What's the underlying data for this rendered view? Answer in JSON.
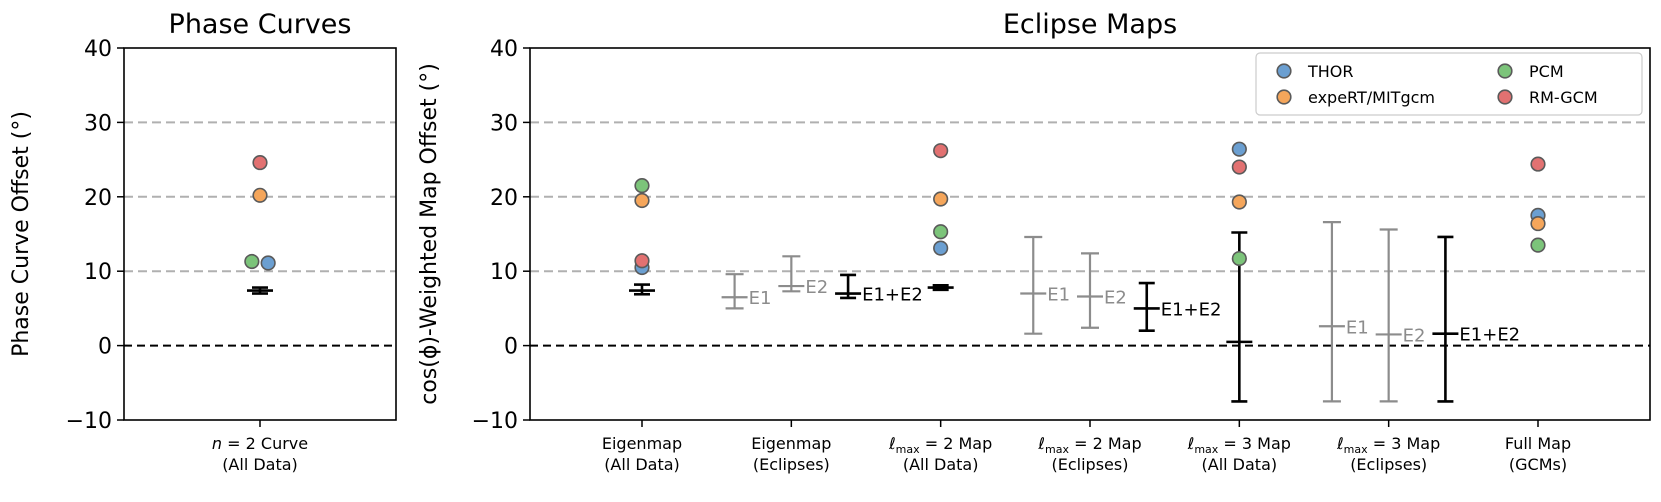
{
  "chart_data": [
    {
      "type": "scatter",
      "title": "Phase Curves",
      "ylabel": "Phase Curve Offset (°)",
      "ylim": [
        -10,
        40
      ],
      "yticks": [
        "−10",
        "0",
        "10",
        "20",
        "30",
        "40"
      ],
      "grid": "horizontal dashed at 10, 20, 30",
      "zero_line": "black dashed at 0",
      "categories": [
        {
          "line1": "n = 2 Curve",
          "line2": "(All Data)"
        }
      ],
      "series": [
        {
          "name": "THOR",
          "color": "#6b9fd1",
          "points": [
            [
              0.06,
              11.1
            ]
          ]
        },
        {
          "name": "expeRT/MITgcm",
          "color": "#f5a65b",
          "points": [
            [
              0,
              20.2
            ]
          ]
        },
        {
          "name": "PCM",
          "color": "#7cc47a",
          "points": [
            [
              -0.06,
              11.3
            ]
          ]
        },
        {
          "name": "RM-GCM",
          "color": "#e27171",
          "points": [
            [
              0,
              24.6
            ]
          ]
        }
      ],
      "error_bars": [
        {
          "x": 0,
          "y": 7.4,
          "low": 7.0,
          "high": 7.8,
          "label": "",
          "color": "#000000"
        }
      ]
    },
    {
      "type": "scatter",
      "title": "Eclipse Maps",
      "ylabel": "cos(ϕ)-Weighted Map Offset (°)",
      "ylim": [
        -10,
        40
      ],
      "yticks": [
        "−10",
        "0",
        "10",
        "20",
        "30",
        "40"
      ],
      "grid": "horizontal dashed at 10, 20, 30",
      "zero_line": "black dashed at 0",
      "legend": {
        "position": "top-right",
        "columns": 2
      },
      "categories": [
        {
          "line1": "Eigenmap",
          "line2": "(All Data)"
        },
        {
          "line1": "Eigenmap",
          "line2": "(Eclipses)"
        },
        {
          "line1": "ℓmax = 2 Map",
          "line2": "(All Data)"
        },
        {
          "line1": "ℓmax = 2 Map",
          "line2": "(Eclipses)"
        },
        {
          "line1": "ℓmax = 3 Map",
          "line2": "(All Data)"
        },
        {
          "line1": "ℓmax = 3 Map",
          "line2": "(Eclipses)"
        },
        {
          "line1": "Full Map",
          "line2": "(GCMs)"
        }
      ],
      "series": [
        {
          "name": "THOR",
          "color": "#6b9fd1",
          "points": [
            [
              0,
              10.5
            ],
            [
              2,
              13.1
            ],
            [
              4,
              26.4
            ],
            [
              6,
              17.5
            ]
          ]
        },
        {
          "name": "expeRT/MITgcm",
          "color": "#f5a65b",
          "points": [
            [
              0,
              19.5
            ],
            [
              2,
              19.7
            ],
            [
              4,
              19.3
            ],
            [
              6,
              16.4
            ]
          ]
        },
        {
          "name": "PCM",
          "color": "#7cc47a",
          "points": [
            [
              0,
              21.5
            ],
            [
              2,
              15.3
            ],
            [
              4,
              11.7
            ],
            [
              6,
              13.5
            ]
          ]
        },
        {
          "name": "RM-GCM",
          "color": "#e27171",
          "points": [
            [
              0,
              11.4
            ],
            [
              2,
              26.2
            ],
            [
              4,
              24.0
            ],
            [
              6,
              24.4
            ]
          ]
        }
      ],
      "error_bars": [
        {
          "x": 0,
          "y": 7.4,
          "low": 6.9,
          "high": 8.2,
          "label": "",
          "color": "#000000"
        },
        {
          "x": 0.62,
          "y": 6.5,
          "low": 5.0,
          "high": 9.6,
          "label": "E1",
          "color": "#8c8c8c"
        },
        {
          "x": 1.0,
          "y": 8.0,
          "low": 7.3,
          "high": 12.0,
          "label": "E2",
          "color": "#8c8c8c"
        },
        {
          "x": 1.38,
          "y": 7.0,
          "low": 6.4,
          "high": 9.5,
          "label": "E1+E2",
          "color": "#000000"
        },
        {
          "x": 2,
          "y": 7.8,
          "low": 7.5,
          "high": 8.1,
          "label": "",
          "color": "#000000"
        },
        {
          "x": 2.62,
          "y": 7.0,
          "low": 1.6,
          "high": 14.6,
          "label": "E1",
          "color": "#8c8c8c"
        },
        {
          "x": 3.0,
          "y": 6.6,
          "low": 2.4,
          "high": 12.4,
          "label": "E2",
          "color": "#8c8c8c"
        },
        {
          "x": 3.38,
          "y": 5.0,
          "low": 2.0,
          "high": 8.4,
          "label": "E1+E2",
          "color": "#000000"
        },
        {
          "x": 4,
          "y": 0.5,
          "low": -7.5,
          "high": 15.2,
          "label": "",
          "color": "#000000"
        },
        {
          "x": 4.62,
          "y": 2.6,
          "low": -7.5,
          "high": 16.6,
          "label": "E1",
          "color": "#8c8c8c"
        },
        {
          "x": 5.0,
          "y": 1.5,
          "low": -7.5,
          "high": 15.6,
          "label": "E2",
          "color": "#8c8c8c"
        },
        {
          "x": 5.38,
          "y": 1.6,
          "low": -7.5,
          "high": 14.6,
          "label": "E1+E2",
          "color": "#000000"
        }
      ]
    }
  ]
}
